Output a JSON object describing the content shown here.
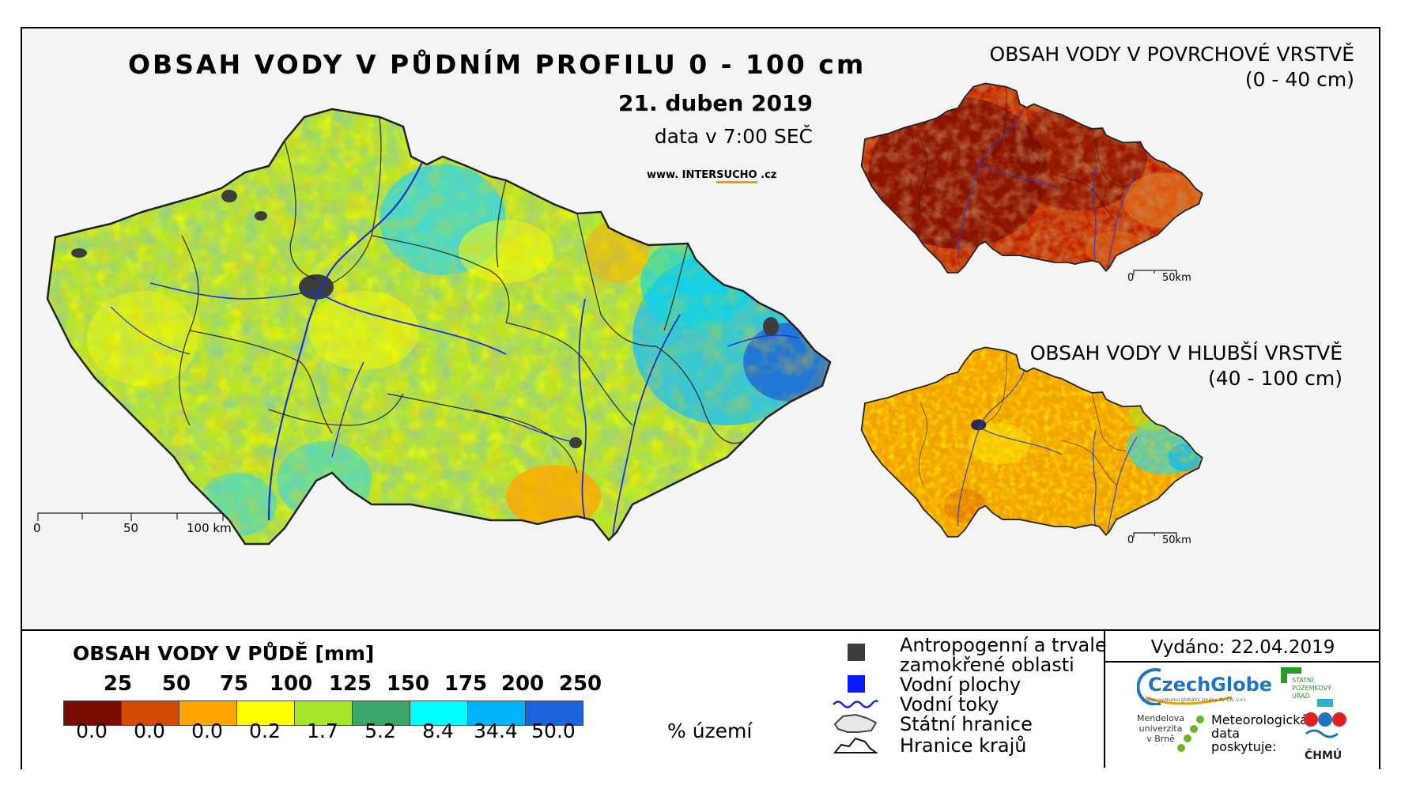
{
  "main_map": {
    "title": "OBSAH VODY V PŮDNÍM PROFILU 0 - 100 cm",
    "date": "21. duben 2019",
    "time": "data v 7:00 SEČ",
    "website": {
      "prefix": "www.",
      "brand_a": "INTER",
      "brand_b": "SUCHO",
      "suffix": ".cz"
    },
    "scale_labels": [
      "0",
      "50",
      "100 km"
    ]
  },
  "surface_map": {
    "title": "OBSAH VODY V POVRCHOVÉ VRSTVĚ",
    "range": "(0 - 40 cm)",
    "scale_labels": [
      "0",
      "50km"
    ]
  },
  "deep_map": {
    "title": "OBSAH VODY V HLUBŠÍ VRSTVĚ",
    "range": "(40 - 100 cm)",
    "scale_labels": [
      "0",
      "50km"
    ]
  },
  "legend": {
    "title": "OBSAH VODY V PŮDĚ [mm]",
    "thresholds": [
      "25",
      "50",
      "75",
      "100",
      "125",
      "150",
      "175",
      "200",
      "250"
    ],
    "colors": [
      "#7a0b00",
      "#d44a00",
      "#ffa500",
      "#ffff00",
      "#a7e52a",
      "#3aa66a",
      "#00ffff",
      "#00b4ff",
      "#1a63d8"
    ],
    "percent_territory": [
      "0.0",
      "0.0",
      "0.0",
      "0.2",
      "1.7",
      "5.2",
      "8.4",
      "34.4",
      "50.0"
    ],
    "percent_unit": "% území"
  },
  "map_key": {
    "anthropogenic_line1": "Antropogenní a trvale",
    "anthropogenic_line2": "zamokřené oblasti",
    "water_bodies": "Vodní plochy",
    "rivers": "Vodní toky",
    "state_border": "Státní hranice",
    "region_border": "Hranice krajů"
  },
  "issued": "Vydáno: 22.04.2019",
  "logos": {
    "czechglobe": "CzechGlobe",
    "czechglobe_sub": "Ústav výzkumu globální změny AV ČR, v.v.i.",
    "mendel": "Mendelova univerzita v Brně",
    "spu": "STÁTNÍ POZEMKOVÝ ÚŘAD",
    "meteo": "Meteorologická data poskytuje:",
    "chmu": "ČHMÚ"
  }
}
